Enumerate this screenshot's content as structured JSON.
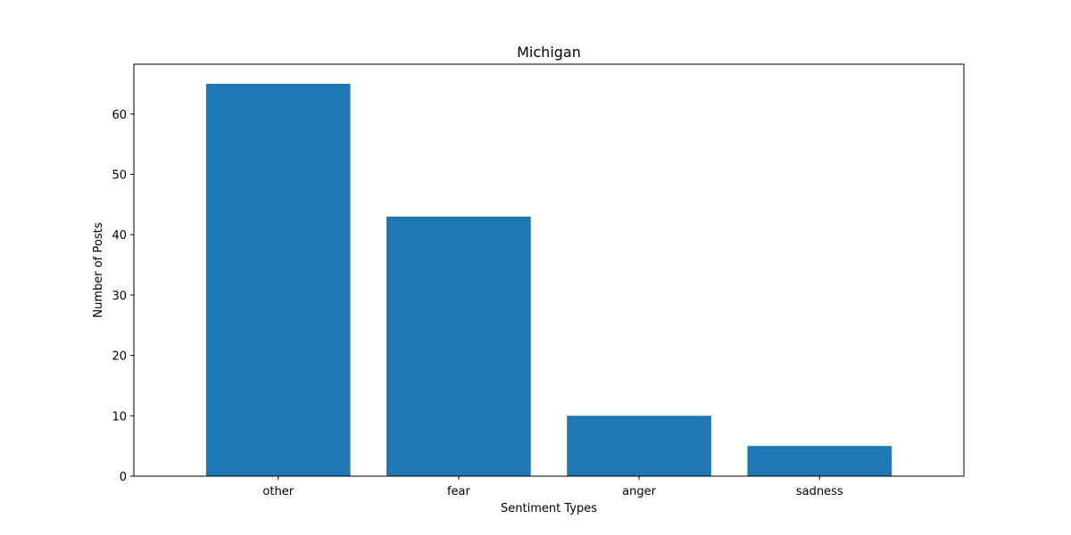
{
  "chart_data": {
    "type": "bar",
    "title": "Michigan",
    "xlabel": "Sentiment Types",
    "ylabel": "Number of Posts",
    "categories": [
      "other",
      "fear",
      "anger",
      "sadness"
    ],
    "values": [
      65,
      43,
      10,
      5
    ],
    "ylim": [
      0,
      68.25
    ],
    "yticks": [
      0,
      10,
      20,
      30,
      40,
      50,
      60
    ],
    "grid": false,
    "bar_color": "#1f77b4"
  }
}
